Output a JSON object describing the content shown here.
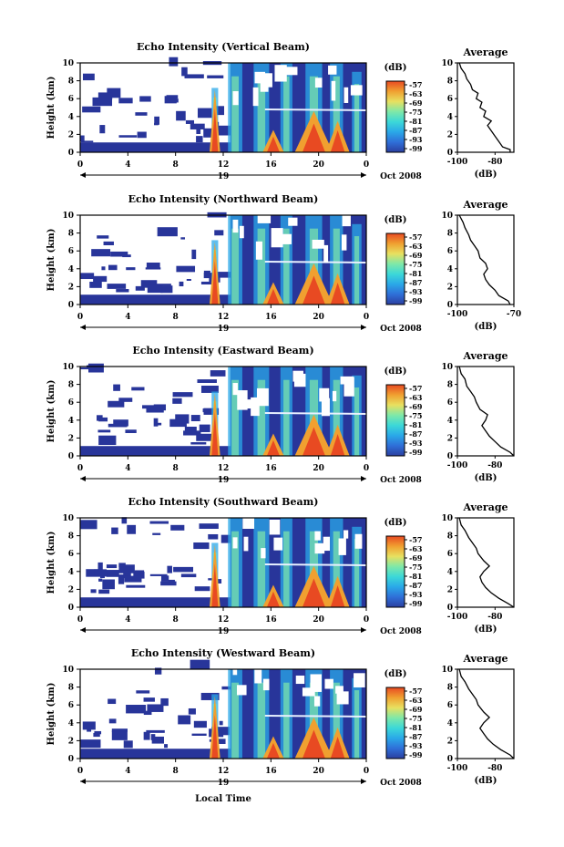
{
  "chart_data": [
    {
      "type": "heatmap",
      "title": "Echo Intensity (Vertical Beam)",
      "ylabel": "Height (km)",
      "ylim": [
        0,
        10
      ],
      "yticks": [
        "0",
        "2",
        "4",
        "6",
        "8",
        "10"
      ],
      "xlim": [
        0,
        24
      ],
      "xticks": [
        "0",
        "4",
        "8",
        "12",
        "16",
        "20",
        "0"
      ],
      "date_marker": "19",
      "date_label": "Oct 2008",
      "colorbar": {
        "unit": "(dB)",
        "labels": [
          "-57",
          "-63",
          "-69",
          "-75",
          "-81",
          "-87",
          "-93",
          "-99"
        ]
      },
      "profile": {
        "title": "Average",
        "xlabel": "(dB)",
        "xticks": [
          "-100",
          "-80"
        ],
        "yticks": [
          "0",
          "2",
          "4",
          "6",
          "8",
          "10"
        ],
        "points": [
          [
            -72,
            0
          ],
          [
            -72,
            0.3
          ],
          [
            -76,
            0.6
          ],
          [
            -78,
            1.2
          ],
          [
            -80,
            1.8
          ],
          [
            -82,
            2.4
          ],
          [
            -84,
            3.0
          ],
          [
            -82,
            3.5
          ],
          [
            -86,
            4.0
          ],
          [
            -85,
            4.6
          ],
          [
            -88,
            5.0
          ],
          [
            -87,
            5.6
          ],
          [
            -90,
            6.0
          ],
          [
            -89,
            6.6
          ],
          [
            -92,
            7.0
          ],
          [
            -93,
            7.6
          ],
          [
            -95,
            8.2
          ],
          [
            -96,
            8.8
          ],
          [
            -98,
            9.4
          ],
          [
            -99,
            10
          ]
        ]
      }
    },
    {
      "type": "heatmap",
      "title": "Echo Intensity (Northward Beam)",
      "ylabel": "Height (km)",
      "ylim": [
        0,
        10
      ],
      "yticks": [
        "0",
        "2",
        "4",
        "6",
        "8",
        "10"
      ],
      "xlim": [
        0,
        24
      ],
      "xticks": [
        "0",
        "4",
        "8",
        "12",
        "16",
        "20",
        "0"
      ],
      "date_marker": "19",
      "date_label": "Oct 2008",
      "colorbar": {
        "unit": "(dB)",
        "labels": [
          "-57",
          "-63",
          "-69",
          "-75",
          "-81",
          "-87",
          "-93",
          "-99"
        ]
      },
      "profile": {
        "title": "Average",
        "xlabel": "(dB)",
        "xticks": [
          "-100",
          "-70"
        ],
        "yticks": [
          "0",
          "2",
          "4",
          "6",
          "8",
          "10"
        ],
        "points": [
          [
            -72,
            0
          ],
          [
            -73,
            0.4
          ],
          [
            -78,
            1.0
          ],
          [
            -80,
            1.6
          ],
          [
            -83,
            2.2
          ],
          [
            -85,
            2.8
          ],
          [
            -86,
            3.4
          ],
          [
            -84,
            4.0
          ],
          [
            -85,
            4.6
          ],
          [
            -88,
            5.2
          ],
          [
            -89,
            6.0
          ],
          [
            -91,
            6.6
          ],
          [
            -93,
            7.2
          ],
          [
            -94,
            7.8
          ],
          [
            -96,
            8.6
          ],
          [
            -97,
            9.2
          ],
          [
            -99,
            10
          ]
        ]
      }
    },
    {
      "type": "heatmap",
      "title": "Echo Intensity (Eastward Beam)",
      "ylabel": "Height (km)",
      "ylim": [
        0,
        10
      ],
      "yticks": [
        "0",
        "2",
        "4",
        "6",
        "8",
        "10"
      ],
      "xlim": [
        0,
        24
      ],
      "xticks": [
        "0",
        "4",
        "8",
        "12",
        "16",
        "20",
        "0"
      ],
      "date_marker": "19",
      "date_label": "Oct 2008",
      "colorbar": {
        "unit": "(dB)",
        "labels": [
          "-57",
          "-63",
          "-69",
          "-75",
          "-81",
          "-87",
          "-93",
          "-99"
        ]
      },
      "profile": {
        "title": "Average",
        "xlabel": "(dB)",
        "xticks": [
          "-100",
          "-80"
        ],
        "yticks": [
          "0",
          "2",
          "4",
          "6",
          "8",
          "10"
        ],
        "points": [
          [
            -70,
            0
          ],
          [
            -72,
            0.4
          ],
          [
            -77,
            1.0
          ],
          [
            -80,
            1.6
          ],
          [
            -83,
            2.2
          ],
          [
            -85,
            2.8
          ],
          [
            -87,
            3.4
          ],
          [
            -85,
            4.0
          ],
          [
            -84,
            4.6
          ],
          [
            -88,
            5.2
          ],
          [
            -90,
            6.0
          ],
          [
            -91,
            6.6
          ],
          [
            -93,
            7.2
          ],
          [
            -95,
            7.8
          ],
          [
            -96,
            8.6
          ],
          [
            -98,
            9.2
          ],
          [
            -99,
            10
          ]
        ]
      }
    },
    {
      "type": "heatmap",
      "title": "Echo Intensity (Southward Beam)",
      "ylabel": "Height (km)",
      "ylim": [
        0,
        10
      ],
      "yticks": [
        "0",
        "2",
        "4",
        "6",
        "8",
        "10"
      ],
      "xlim": [
        0,
        24
      ],
      "xticks": [
        "0",
        "4",
        "8",
        "12",
        "16",
        "20",
        "0"
      ],
      "date_marker": "19",
      "date_label": "Oct 2008",
      "colorbar": {
        "unit": "(dB)",
        "labels": [
          "-57",
          "-63",
          "-69",
          "-75",
          "-81",
          "-87",
          "-93",
          "-99"
        ]
      },
      "profile": {
        "title": "Average",
        "xlabel": "(dB)",
        "xticks": [
          "-100",
          "-80"
        ],
        "yticks": [
          "0",
          "2",
          "4",
          "6",
          "8",
          "10"
        ],
        "points": [
          [
            -70,
            0
          ],
          [
            -73,
            0.4
          ],
          [
            -78,
            1.0
          ],
          [
            -82,
            1.6
          ],
          [
            -85,
            2.2
          ],
          [
            -87,
            2.8
          ],
          [
            -88,
            3.4
          ],
          [
            -86,
            4.0
          ],
          [
            -83,
            4.6
          ],
          [
            -86,
            5.2
          ],
          [
            -89,
            6.0
          ],
          [
            -90,
            6.6
          ],
          [
            -92,
            7.2
          ],
          [
            -94,
            7.8
          ],
          [
            -96,
            8.6
          ],
          [
            -98,
            9.2
          ],
          [
            -99,
            10
          ]
        ]
      }
    },
    {
      "type": "heatmap",
      "title": "Echo Intensity (Westward Beam)",
      "ylabel": "Height (km)",
      "ylim": [
        0,
        10
      ],
      "yticks": [
        "0",
        "2",
        "4",
        "6",
        "8",
        "10"
      ],
      "xlim": [
        0,
        24
      ],
      "xticks": [
        "0",
        "4",
        "8",
        "12",
        "16",
        "20",
        "0"
      ],
      "date_marker": "19",
      "date_label": "Oct 2008",
      "colorbar": {
        "unit": "(dB)",
        "labels": [
          "-57",
          "-63",
          "-69",
          "-75",
          "-81",
          "-87",
          "-93",
          "-99"
        ]
      },
      "profile": {
        "title": "Average",
        "xlabel": "(dB)",
        "xticks": [
          "-100",
          "-80"
        ],
        "yticks": [
          "0",
          "2",
          "4",
          "6",
          "8",
          "10"
        ],
        "points": [
          [
            -70,
            0
          ],
          [
            -72,
            0.4
          ],
          [
            -77,
            1.0
          ],
          [
            -81,
            1.6
          ],
          [
            -84,
            2.2
          ],
          [
            -86,
            2.8
          ],
          [
            -88,
            3.4
          ],
          [
            -86,
            4.0
          ],
          [
            -83,
            4.6
          ],
          [
            -86,
            5.2
          ],
          [
            -89,
            6.0
          ],
          [
            -90,
            6.6
          ],
          [
            -92,
            7.2
          ],
          [
            -94,
            7.8
          ],
          [
            -96,
            8.6
          ],
          [
            -98,
            9.2
          ],
          [
            -99,
            10
          ]
        ]
      }
    }
  ],
  "figure": {
    "xlabel": "Local Time"
  },
  "colors": {
    "scale": [
      "#2b3fa0",
      "#2f6fd8",
      "#2aa8e8",
      "#3cd8d8",
      "#7fe8a8",
      "#e8e060",
      "#f0a030",
      "#e84a22"
    ],
    "background_echo": "#28359a"
  }
}
